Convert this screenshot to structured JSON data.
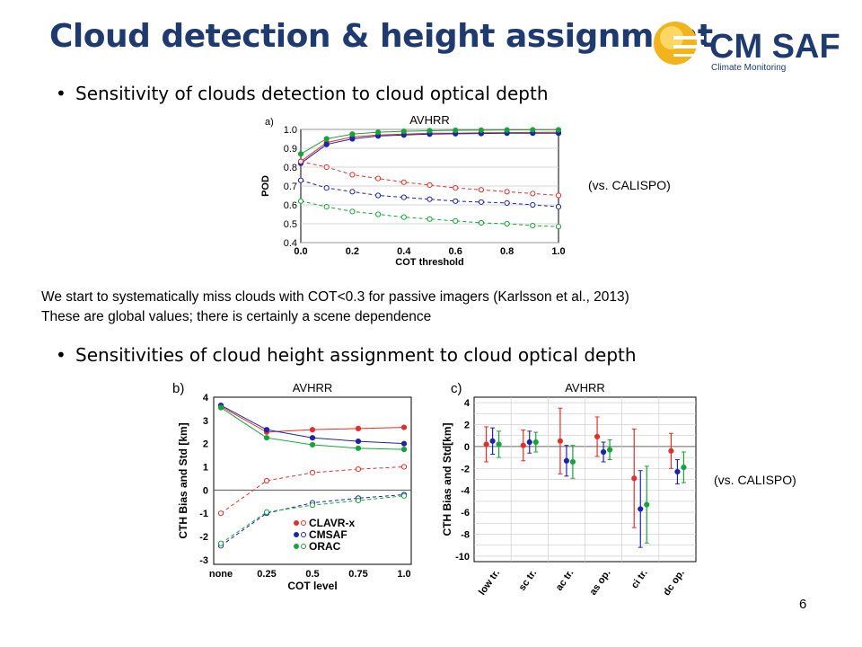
{
  "slide": {
    "title": "Cloud detection & height assignment",
    "bullet1": "Sensitivity of clouds detection to cloud optical depth",
    "note_line1": "We start to systematically miss clouds with COT<0.3 for passive imagers (Karlsson et al., 2013)",
    "note_line2": "These are global values; there is certainly a scene dependence",
    "bullet2": "Sensitivities of cloud height assignment to cloud optical depth",
    "vs_label_a": "(vs. CALISPO)",
    "vs_label_c": "(vs. CALISPO)",
    "page_number": "6"
  },
  "logo": {
    "text": "CM SAF",
    "subtext": "Climate Monitoring",
    "color_text": "#1f3a6e",
    "color_sun": "#f2b31c"
  },
  "colors": {
    "red": "#e0302a",
    "blue": "#1c24a8",
    "green": "#18a33a",
    "magenta": "#9b1e6e"
  },
  "chart_data": [
    {
      "type": "line",
      "panel": "a)",
      "title": "AVHRR",
      "xlabel": "COT threshold",
      "ylabel": "POD",
      "xlim": [
        0,
        1.0
      ],
      "ylim": [
        0.4,
        1.0
      ],
      "xticks": [
        "0.0",
        "0.2",
        "0.4",
        "0.6",
        "0.8",
        "1.0"
      ],
      "yticks": [
        "0.4",
        "0.5",
        "0.6",
        "0.7",
        "0.8",
        "0.9",
        "1.0"
      ],
      "x": [
        0,
        0.1,
        0.2,
        0.3,
        0.4,
        0.5,
        0.6,
        0.7,
        0.8,
        0.9,
        1.0
      ],
      "series": [
        {
          "color": "red",
          "style": "solid",
          "marker": "filled",
          "values": [
            0.83,
            0.93,
            0.96,
            0.97,
            0.975,
            0.98,
            0.98,
            0.982,
            0.983,
            0.984,
            0.985
          ]
        },
        {
          "color": "blue",
          "style": "solid",
          "marker": "filled",
          "values": [
            0.82,
            0.92,
            0.95,
            0.965,
            0.97,
            0.975,
            0.977,
            0.978,
            0.98,
            0.98,
            0.98
          ]
        },
        {
          "color": "green",
          "style": "solid",
          "marker": "filled",
          "values": [
            0.87,
            0.95,
            0.975,
            0.985,
            0.99,
            0.993,
            0.995,
            0.996,
            0.997,
            0.998,
            0.998
          ]
        },
        {
          "color": "red",
          "style": "dashed",
          "marker": "open",
          "values": [
            0.83,
            0.8,
            0.76,
            0.74,
            0.72,
            0.705,
            0.69,
            0.68,
            0.67,
            0.66,
            0.65
          ]
        },
        {
          "color": "blue",
          "style": "dashed",
          "marker": "open",
          "values": [
            0.73,
            0.69,
            0.67,
            0.65,
            0.64,
            0.63,
            0.62,
            0.615,
            0.61,
            0.6,
            0.59
          ]
        },
        {
          "color": "green",
          "style": "dashed",
          "marker": "open",
          "values": [
            0.62,
            0.59,
            0.565,
            0.55,
            0.535,
            0.525,
            0.515,
            0.505,
            0.5,
            0.49,
            0.485
          ]
        }
      ]
    },
    {
      "type": "line",
      "panel": "b)",
      "title": "AVHRR",
      "xlabel": "COT level",
      "ylabel": "CTH Bias and Std [km]",
      "ylim": [
        -3.2,
        4
      ],
      "categories": [
        "none",
        "0.25",
        "0.5",
        "0.75",
        "1.0"
      ],
      "yticks": [
        "-3",
        "-2",
        "-1",
        "0",
        "1",
        "2",
        "3",
        "4"
      ],
      "legend": [
        "CLAVR-x",
        "CMSAF",
        "ORAC"
      ],
      "legend_position": "bottom-right",
      "series": [
        {
          "name": "CLAVR-x",
          "color": "red",
          "std": [
            3.6,
            2.5,
            2.6,
            2.65,
            2.7
          ],
          "bias": [
            -1.0,
            0.4,
            0.75,
            0.9,
            1.0
          ]
        },
        {
          "name": "CMSAF",
          "color": "blue",
          "std": [
            3.65,
            2.6,
            2.25,
            2.1,
            2.0
          ],
          "bias": [
            -2.4,
            -1.0,
            -0.55,
            -0.35,
            -0.2
          ]
        },
        {
          "name": "ORAC",
          "color": "green",
          "std": [
            3.55,
            2.25,
            1.95,
            1.8,
            1.75
          ],
          "bias": [
            -2.3,
            -0.95,
            -0.65,
            -0.45,
            -0.25
          ]
        }
      ]
    },
    {
      "type": "scatter",
      "panel": "c)",
      "title": "AVHRR",
      "xlabel": "",
      "ylabel": "CTH Bias and Std[km]",
      "ylim": [
        -10.5,
        4.5
      ],
      "categories": [
        "low tr.",
        "sc tr.",
        "ac tr.",
        "as op.",
        "ci tr.",
        "dc op."
      ],
      "yticks": [
        "-10",
        "-8",
        "-6",
        "-4",
        "-2",
        "0",
        "2",
        "4"
      ],
      "series": [
        {
          "color": "red",
          "mean": [
            0.2,
            0.1,
            0.5,
            0.9,
            -2.9,
            -0.4
          ],
          "std": [
            1.6,
            1.4,
            3.0,
            1.8,
            4.5,
            1.6
          ]
        },
        {
          "color": "blue",
          "mean": [
            0.5,
            0.4,
            -1.3,
            -0.5,
            -5.7,
            -2.3
          ],
          "std": [
            1.2,
            1.0,
            1.4,
            0.9,
            3.5,
            1.1
          ]
        },
        {
          "color": "green",
          "mean": [
            0.2,
            0.4,
            -1.4,
            -0.3,
            -5.3,
            -1.9
          ],
          "std": [
            1.2,
            0.9,
            1.5,
            0.9,
            3.5,
            1.4
          ]
        }
      ]
    }
  ]
}
